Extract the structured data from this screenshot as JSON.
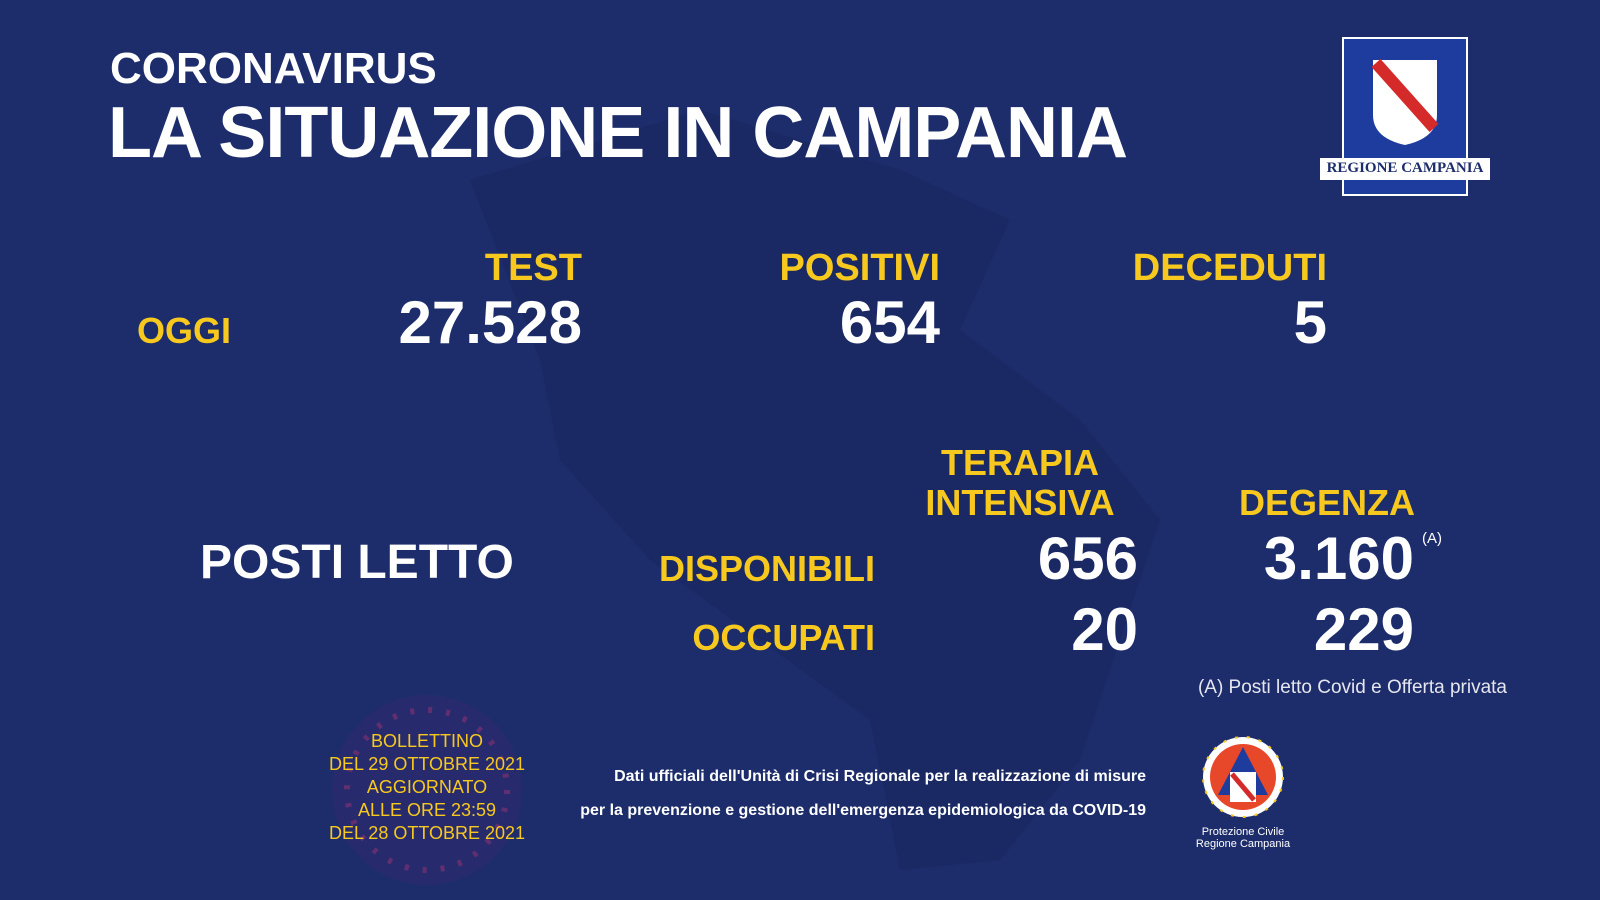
{
  "header": {
    "kicker": "CORONAVIRUS",
    "title": "LA SITUAZIONE IN CAMPANIA",
    "logo_text": "REGIONE CAMPANIA"
  },
  "today": {
    "label": "OGGI",
    "columns": [
      {
        "label": "TEST",
        "value": "27.528"
      },
      {
        "label": "POSITIVI",
        "value": "654"
      },
      {
        "label": "DECEDUTI",
        "value": "5"
      }
    ]
  },
  "beds": {
    "label": "POSTI LETTO",
    "columns": [
      {
        "lines": [
          "TERAPIA",
          "INTENSIVA"
        ]
      },
      {
        "lines": [
          "DEGENZA"
        ]
      }
    ],
    "rows": [
      {
        "label": "DISPONIBILI",
        "values": [
          "656",
          "3.160"
        ],
        "marker": "(A)"
      },
      {
        "label": "OCCUPATI",
        "values": [
          "20",
          "229"
        ]
      }
    ],
    "note": "(A) Posti letto Covid e Offerta privata"
  },
  "bulletin": [
    "BOLLETTINO",
    "DEL 29 OTTOBRE 2021",
    "AGGIORNATO",
    "ALLE ORE 23:59",
    "DEL 28 OTTOBRE 2021"
  ],
  "footer": [
    "Dati ufficiali dell'Unità di Crisi Regionale per la realizzazione di misure",
    "per la prevenzione e gestione dell'emergenza epidemiologica da COVID-19"
  ],
  "civil_protection": [
    "Protezione Civile",
    "Regione Campania"
  ]
}
